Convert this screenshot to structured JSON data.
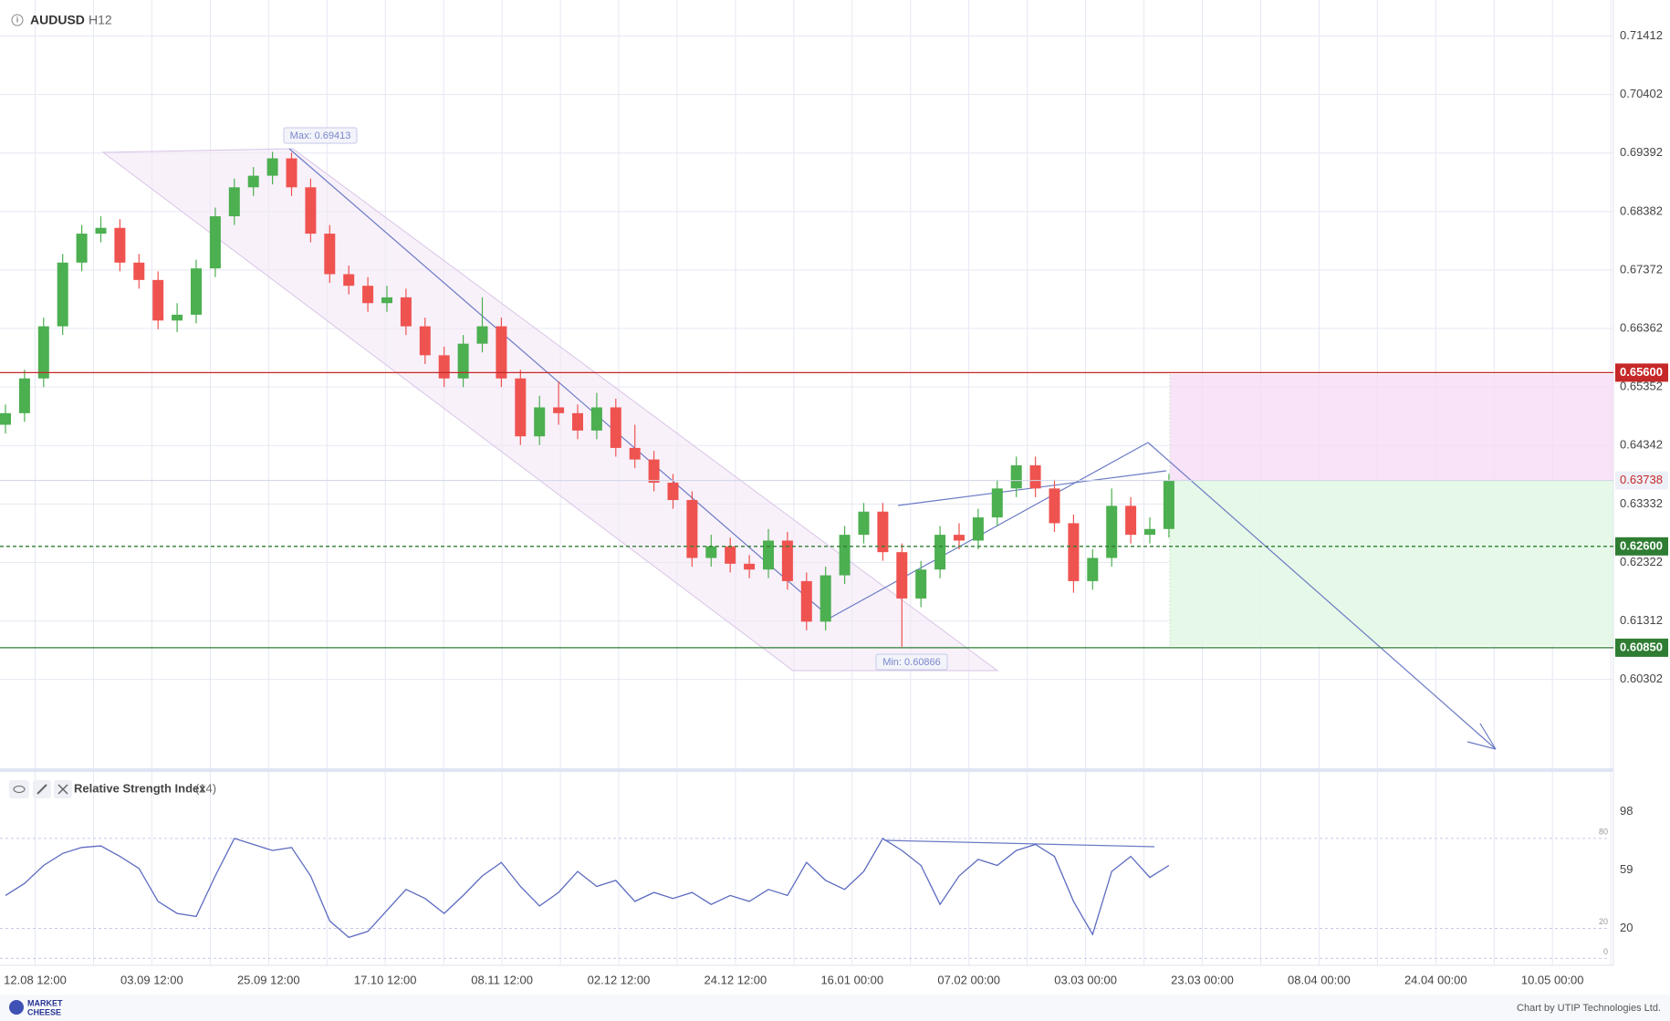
{
  "header": {
    "symbol": "AUDUSD",
    "timeframe": "H12"
  },
  "chart_data": [
    {
      "type": "candlestick",
      "up_color": "#4caf50",
      "down_color": "#ef5350",
      "ylim": [
        0.588,
        0.7194
      ],
      "yticks": [
        0.71412,
        0.70402,
        0.69392,
        0.68382,
        0.67372,
        0.66362,
        0.65352,
        0.64342,
        0.63332,
        0.62322,
        0.61312,
        0.60302
      ],
      "xtick_labels": [
        "12.08 12:00",
        "03.09 12:00",
        "25.09 12:00",
        "17.10 12:00",
        "08.11 12:00",
        "02.12 12:00",
        "24.12 12:00",
        "16.01 00:00",
        "07.02 00:00",
        "03.03 00:00",
        "23.03 00:00",
        "08.04 00:00",
        "24.04 00:00",
        "10.05 00:00"
      ],
      "grid": true,
      "levels": [
        {
          "value": 0.656,
          "label": "0.65600",
          "color": "#c62828",
          "style": "solid"
        },
        {
          "value": 0.626,
          "label": "0.62600",
          "color": "#2e7d32",
          "style": "dashed"
        },
        {
          "value": 0.6085,
          "label": "0.60850",
          "color": "#2e7d32",
          "style": "solid"
        }
      ],
      "current_price": {
        "value": 0.63738,
        "label": "0.63738",
        "color": "#c62828"
      },
      "annotations": [
        "Max: 0.69413",
        "Min: 0.60866"
      ],
      "ohlc": [
        [
          0.647,
          0.6505,
          0.6455,
          0.649
        ],
        [
          0.649,
          0.6565,
          0.6475,
          0.655
        ],
        [
          0.655,
          0.6655,
          0.6535,
          0.664
        ],
        [
          0.664,
          0.6765,
          0.6625,
          0.675
        ],
        [
          0.675,
          0.6815,
          0.6735,
          0.68
        ],
        [
          0.68,
          0.683,
          0.6785,
          0.681
        ],
        [
          0.681,
          0.6825,
          0.6735,
          0.675
        ],
        [
          0.675,
          0.6765,
          0.6705,
          0.672
        ],
        [
          0.672,
          0.6735,
          0.6635,
          0.665
        ],
        [
          0.665,
          0.668,
          0.663,
          0.666
        ],
        [
          0.666,
          0.6755,
          0.6645,
          0.674
        ],
        [
          0.674,
          0.6845,
          0.6725,
          0.683
        ],
        [
          0.683,
          0.6895,
          0.6815,
          0.688
        ],
        [
          0.688,
          0.6915,
          0.6865,
          0.69
        ],
        [
          0.69,
          0.69413,
          0.6885,
          0.693
        ],
        [
          0.693,
          0.694,
          0.6865,
          0.688
        ],
        [
          0.688,
          0.6895,
          0.6785,
          0.68
        ],
        [
          0.68,
          0.6815,
          0.6715,
          0.673
        ],
        [
          0.673,
          0.6745,
          0.6695,
          0.671
        ],
        [
          0.671,
          0.6725,
          0.6665,
          0.668
        ],
        [
          0.668,
          0.671,
          0.6665,
          0.669
        ],
        [
          0.669,
          0.6705,
          0.6625,
          0.664
        ],
        [
          0.664,
          0.6655,
          0.6575,
          0.659
        ],
        [
          0.659,
          0.6605,
          0.6535,
          0.655
        ],
        [
          0.655,
          0.6625,
          0.6535,
          0.661
        ],
        [
          0.661,
          0.669,
          0.6595,
          0.664
        ],
        [
          0.664,
          0.6655,
          0.6535,
          0.655
        ],
        [
          0.655,
          0.6565,
          0.6435,
          0.645
        ],
        [
          0.645,
          0.652,
          0.6435,
          0.65
        ],
        [
          0.65,
          0.6545,
          0.647,
          0.649
        ],
        [
          0.649,
          0.6505,
          0.6445,
          0.646
        ],
        [
          0.646,
          0.6525,
          0.6445,
          0.65
        ],
        [
          0.65,
          0.6515,
          0.6415,
          0.643
        ],
        [
          0.643,
          0.647,
          0.6395,
          0.641
        ],
        [
          0.641,
          0.6425,
          0.6355,
          0.637
        ],
        [
          0.637,
          0.6385,
          0.6325,
          0.634
        ],
        [
          0.634,
          0.6355,
          0.6225,
          0.624
        ],
        [
          0.624,
          0.628,
          0.6225,
          0.626
        ],
        [
          0.626,
          0.6275,
          0.6215,
          0.623
        ],
        [
          0.623,
          0.6245,
          0.6205,
          0.622
        ],
        [
          0.622,
          0.629,
          0.6205,
          0.627
        ],
        [
          0.627,
          0.6285,
          0.6185,
          0.62
        ],
        [
          0.62,
          0.6215,
          0.6115,
          0.613
        ],
        [
          0.613,
          0.6225,
          0.6115,
          0.621
        ],
        [
          0.621,
          0.6295,
          0.6195,
          0.628
        ],
        [
          0.628,
          0.6335,
          0.6265,
          0.632
        ],
        [
          0.632,
          0.6335,
          0.6235,
          0.625
        ],
        [
          0.625,
          0.6265,
          0.60866,
          0.617
        ],
        [
          0.617,
          0.6235,
          0.6155,
          0.622
        ],
        [
          0.622,
          0.6295,
          0.6205,
          0.628
        ],
        [
          0.628,
          0.63,
          0.6255,
          0.627
        ],
        [
          0.627,
          0.6325,
          0.6255,
          0.631
        ],
        [
          0.631,
          0.6375,
          0.6295,
          0.636
        ],
        [
          0.636,
          0.6415,
          0.6345,
          0.64
        ],
        [
          0.64,
          0.6415,
          0.6345,
          0.636
        ],
        [
          0.636,
          0.6375,
          0.6285,
          0.63
        ],
        [
          0.63,
          0.6315,
          0.618,
          0.62
        ],
        [
          0.62,
          0.6255,
          0.6185,
          0.624
        ],
        [
          0.624,
          0.636,
          0.6225,
          0.633
        ],
        [
          0.633,
          0.6345,
          0.6265,
          0.628
        ],
        [
          0.628,
          0.631,
          0.6265,
          0.629
        ],
        [
          0.629,
          0.6385,
          0.6275,
          0.63738
        ]
      ]
    },
    {
      "type": "line",
      "title": "Relative Strength Index",
      "subtitle": "(14)",
      "color": "#5c6bc0",
      "ylim": [
        -3.4,
        120.7
      ],
      "yticks": [
        20,
        59,
        98
      ],
      "levels": [
        80,
        20,
        0
      ],
      "values": [
        42,
        50,
        62,
        70,
        74,
        75,
        68,
        60,
        38,
        30,
        28,
        55,
        80,
        76,
        72,
        74,
        55,
        25,
        14,
        18,
        32,
        46,
        40,
        30,
        42,
        55,
        64,
        48,
        35,
        44,
        58,
        48,
        52,
        38,
        44,
        40,
        44,
        36,
        42,
        38,
        46,
        42,
        64,
        52,
        46,
        58,
        80,
        72,
        62,
        36,
        55,
        66,
        62,
        72,
        76,
        68,
        38,
        16,
        58,
        68,
        54,
        62
      ]
    }
  ],
  "footer": {
    "brand_top": "MARKET",
    "brand_bottom": "CHEESE",
    "credit": "Chart by UTIP Technologies Ltd."
  }
}
